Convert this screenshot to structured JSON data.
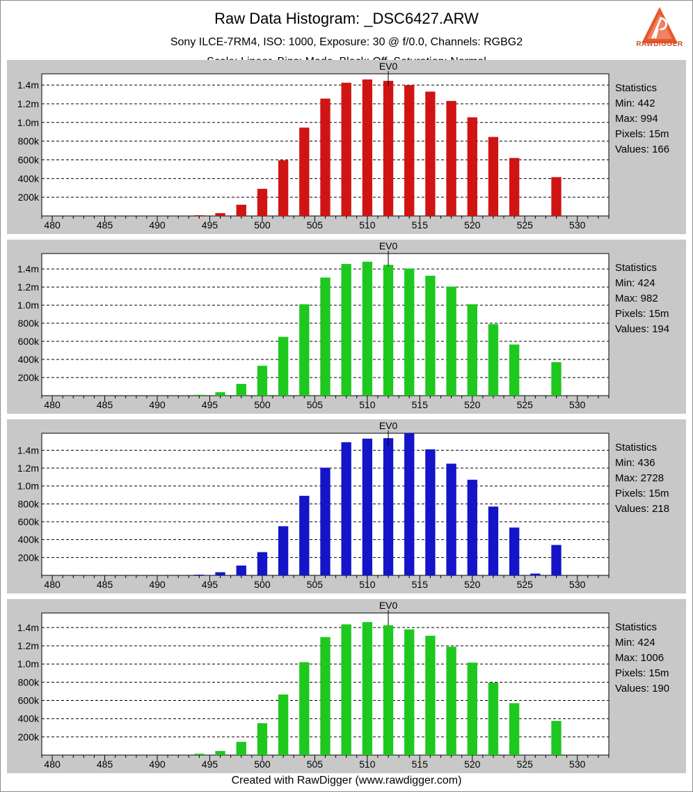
{
  "title": "Raw Data Histogram: _DSC6427.ARW",
  "subtitle": "Sony ILCE-7RM4, ISO: 1000, Exposure: 30 @ f/0.0, Channels: RGBG2",
  "subtitle_partial": "Scale: Linear, Bins: Mode, Black: Off, Saturation: Normal",
  "logo_text": "RAWDIGGER",
  "footer": "Created with RawDigger (www.rawdigger.com)",
  "chart_data": [
    {
      "type": "bar",
      "channel": "R",
      "color": "#d01414",
      "marker_label": "EV0",
      "marker_x": 512,
      "xlim": [
        479,
        533
      ],
      "ylim": [
        0,
        1520000
      ],
      "xticks": [
        "480",
        "485",
        "490",
        "495",
        "500",
        "505",
        "510",
        "515",
        "520",
        "525",
        "530"
      ],
      "yticks": [
        "200k",
        "400k",
        "600k",
        "800k",
        "1.0m",
        "1.2m",
        "1.4m"
      ],
      "x": [
        494,
        496,
        498,
        500,
        502,
        504,
        506,
        508,
        510,
        512,
        514,
        516,
        518,
        520,
        522,
        524,
        528
      ],
      "values": [
        8000,
        30000,
        120000,
        290000,
        595000,
        945000,
        1255000,
        1425000,
        1460000,
        1445000,
        1400000,
        1330000,
        1230000,
        1055000,
        845000,
        620000,
        415000
      ],
      "stats": {
        "heading": "Statistics",
        "min": "Min: 442",
        "max": "Max: 994",
        "pixels": "Pixels: 15m",
        "values": "Values: 166"
      }
    },
    {
      "type": "bar",
      "channel": "G",
      "color": "#1ec81e",
      "marker_label": "EV0",
      "marker_x": 512,
      "xlim": [
        479,
        533
      ],
      "ylim": [
        0,
        1570000
      ],
      "xticks": [
        "480",
        "485",
        "490",
        "495",
        "500",
        "505",
        "510",
        "515",
        "520",
        "525",
        "530"
      ],
      "yticks": [
        "200k",
        "400k",
        "600k",
        "800k",
        "1.0m",
        "1.2m",
        "1.4m"
      ],
      "x": [
        494,
        496,
        498,
        500,
        502,
        504,
        506,
        508,
        510,
        512,
        514,
        516,
        518,
        520,
        522,
        524,
        528
      ],
      "values": [
        10000,
        38000,
        130000,
        330000,
        650000,
        1010000,
        1305000,
        1455000,
        1480000,
        1445000,
        1405000,
        1325000,
        1205000,
        1010000,
        790000,
        565000,
        370000
      ],
      "stats": {
        "heading": "Statistics",
        "min": "Min: 424",
        "max": "Max: 982",
        "pixels": "Pixels: 15m",
        "values": "Values: 194"
      }
    },
    {
      "type": "bar",
      "channel": "B",
      "color": "#1414c8",
      "marker_label": "EV0",
      "marker_x": 512,
      "xlim": [
        479,
        533
      ],
      "ylim": [
        0,
        1590000
      ],
      "xticks": [
        "480",
        "485",
        "490",
        "495",
        "500",
        "505",
        "510",
        "515",
        "520",
        "525",
        "530"
      ],
      "yticks": [
        "200k",
        "400k",
        "600k",
        "800k",
        "1.0m",
        "1.2m",
        "1.4m"
      ],
      "x": [
        494,
        496,
        498,
        500,
        502,
        504,
        506,
        508,
        510,
        512,
        514,
        516,
        518,
        520,
        522,
        524,
        526,
        528
      ],
      "values": [
        8000,
        35000,
        110000,
        260000,
        550000,
        890000,
        1205000,
        1490000,
        1530000,
        1535000,
        1590000,
        1410000,
        1250000,
        1070000,
        770000,
        535000,
        20000,
        340000
      ],
      "stats": {
        "heading": "Statistics",
        "min": "Min: 436",
        "max": "Max: 2728",
        "pixels": "Pixels: 15m",
        "values": "Values: 218"
      }
    },
    {
      "type": "bar",
      "channel": "G2",
      "color": "#1ec81e",
      "marker_label": "EV0",
      "marker_x": 512,
      "xlim": [
        479,
        533
      ],
      "ylim": [
        0,
        1560000
      ],
      "xticks": [
        "480",
        "485",
        "490",
        "495",
        "500",
        "505",
        "510",
        "515",
        "520",
        "525",
        "530"
      ],
      "yticks": [
        "200k",
        "400k",
        "600k",
        "800k",
        "1.0m",
        "1.2m",
        "1.4m"
      ],
      "x": [
        494,
        496,
        498,
        500,
        502,
        504,
        506,
        508,
        510,
        512,
        514,
        516,
        518,
        520,
        522,
        524,
        528
      ],
      "values": [
        15000,
        45000,
        145000,
        350000,
        665000,
        1020000,
        1295000,
        1435000,
        1460000,
        1425000,
        1380000,
        1310000,
        1190000,
        1015000,
        795000,
        570000,
        375000
      ],
      "stats": {
        "heading": "Statistics",
        "min": "Min: 424",
        "max": "Max: 1006",
        "pixels": "Pixels: 15m",
        "values": "Values: 190"
      }
    }
  ]
}
